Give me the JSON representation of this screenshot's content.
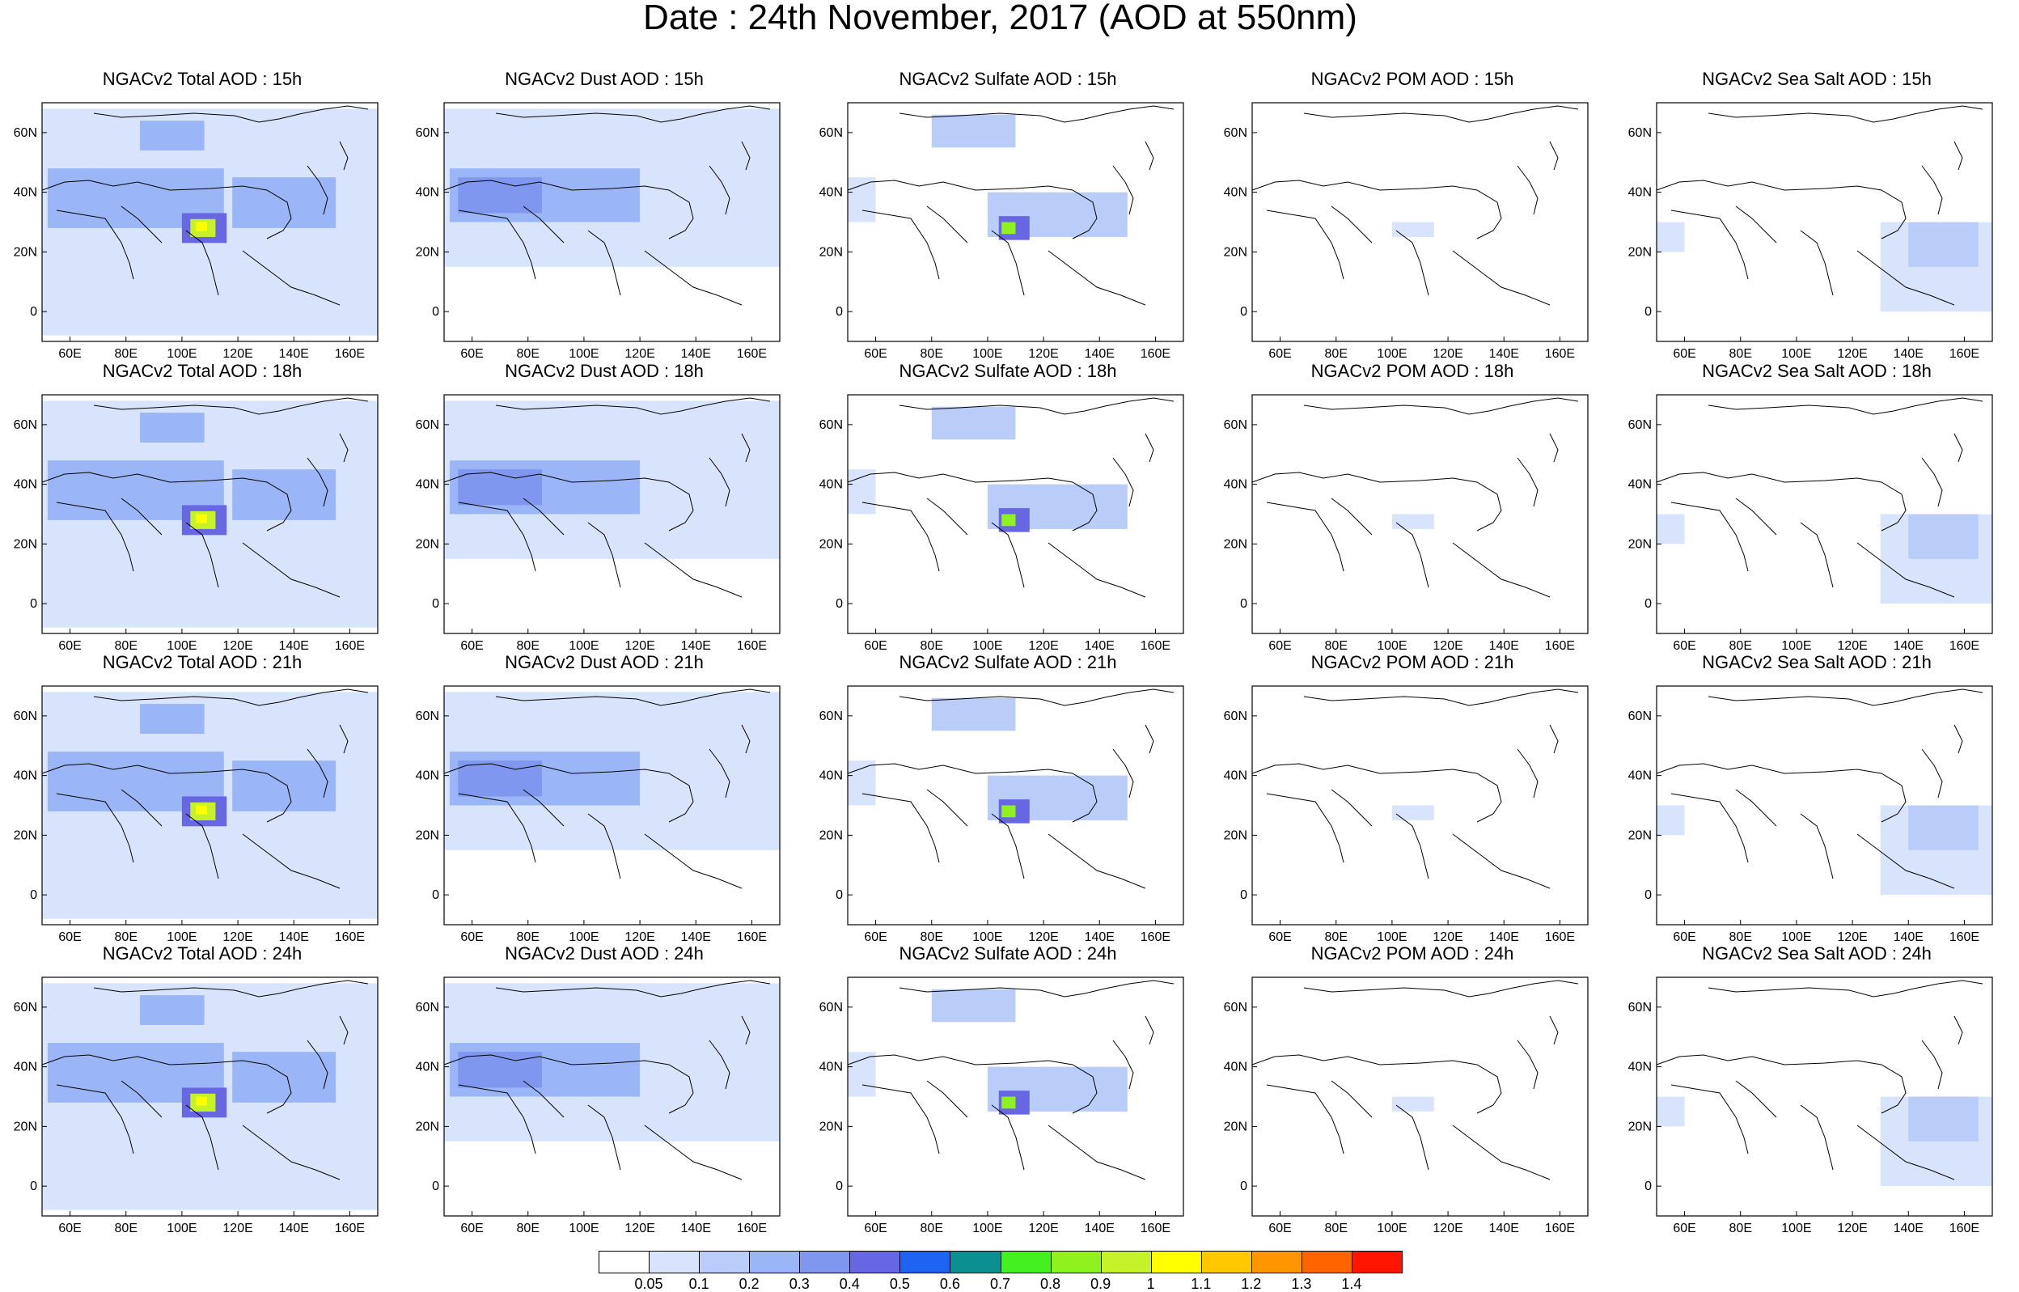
{
  "title": "Date : 24th November, 2017 (AOD at 550nm)",
  "lon_ticks": [
    "60E",
    "80E",
    "100E",
    "120E",
    "140E",
    "160E"
  ],
  "lat_ticks": [
    "60N",
    "40N",
    "20N",
    "0"
  ],
  "map_extent": {
    "lon": [
      50,
      170
    ],
    "lat": [
      -10,
      70
    ]
  },
  "rows": [
    "15h",
    "18h",
    "21h",
    "24h"
  ],
  "columns": [
    {
      "key": "total",
      "titles": [
        "NGACv2 Total AOD : 15h",
        "NGACv2 Total AOD : 18h",
        "NGACv2 Total AOD : 21h",
        "NGACv2 Total AOD : 24h"
      ]
    },
    {
      "key": "dust",
      "titles": [
        "NGACv2 Dust AOD : 15h",
        "NGACv2 Dust AOD : 18h",
        "NGACv2 Dust AOD : 21h",
        "NGACv2 Dust AOD : 24h"
      ]
    },
    {
      "key": "sulfate",
      "titles": [
        "NGACv2 Sulfate AOD : 15h",
        "NGACv2 Sulfate AOD : 18h",
        "NGACv2 Sulfate AOD : 21h",
        "NGACv2 Sulfate AOD : 24h"
      ]
    },
    {
      "key": "pom",
      "titles": [
        "NGACv2 POM AOD : 15h",
        "NGACv2 POM AOD : 18h",
        "NGACv2 POM AOD : 21h",
        "NGACv2 POM AOD : 24h"
      ]
    },
    {
      "key": "seasalt",
      "titles": [
        "NGACv2 Sea Salt AOD : 15h",
        "NGACv2 Sea Salt AOD : 18h",
        "NGACv2 Sea Salt AOD : 21h",
        "NGACv2 Sea Salt  AOD : 24h"
      ]
    }
  ],
  "colorbar": {
    "labels": [
      "0.05",
      "0.1",
      "0.2",
      "0.3",
      "0.4",
      "0.5",
      "0.6",
      "0.7",
      "0.8",
      "0.9",
      "1",
      "1.1",
      "1.2",
      "1.3",
      "1.4"
    ],
    "colors": [
      "#ffffff",
      "#d8e4fb",
      "#b9cdf8",
      "#9bb6f6",
      "#7f97ef",
      "#6767e3",
      "#1f63f2",
      "#0b8f91",
      "#44f020",
      "#8ff21f",
      "#c6f22a",
      "#ffff00",
      "#ffc800",
      "#ff9600",
      "#ff6400",
      "#ff1500"
    ]
  },
  "regions": {
    "total": [
      {
        "lon": [
          50,
          170
        ],
        "lat": [
          -8,
          68
        ],
        "v": 0.07
      },
      {
        "lon": [
          52,
          115
        ],
        "lat": [
          28,
          48
        ],
        "v": 0.25
      },
      {
        "lon": [
          85,
          108
        ],
        "lat": [
          54,
          64
        ],
        "v": 0.27
      },
      {
        "lon": [
          118,
          155
        ],
        "lat": [
          28,
          45
        ],
        "v": 0.25
      },
      {
        "lon": [
          100,
          116
        ],
        "lat": [
          23,
          33
        ],
        "v": 0.45
      },
      {
        "lon": [
          103,
          112
        ],
        "lat": [
          25,
          31
        ],
        "v": 0.9
      },
      {
        "lon": [
          105,
          109
        ],
        "lat": [
          27,
          30
        ],
        "v": 1.05
      }
    ],
    "dust": [
      {
        "lon": [
          50,
          170
        ],
        "lat": [
          15,
          68
        ],
        "v": 0.07
      },
      {
        "lon": [
          52,
          120
        ],
        "lat": [
          30,
          48
        ],
        "v": 0.2
      },
      {
        "lon": [
          55,
          85
        ],
        "lat": [
          33,
          45
        ],
        "v": 0.32
      }
    ],
    "sulfate": [
      {
        "lon": [
          80,
          110
        ],
        "lat": [
          55,
          66
        ],
        "v": 0.15
      },
      {
        "lon": [
          50,
          60
        ],
        "lat": [
          30,
          45
        ],
        "v": 0.08
      },
      {
        "lon": [
          100,
          150
        ],
        "lat": [
          25,
          40
        ],
        "v": 0.12
      },
      {
        "lon": [
          104,
          115
        ],
        "lat": [
          24,
          32
        ],
        "v": 0.45
      },
      {
        "lon": [
          105,
          110
        ],
        "lat": [
          26,
          30
        ],
        "v": 0.8
      }
    ],
    "pom": [
      {
        "lon": [
          100,
          115
        ],
        "lat": [
          25,
          30
        ],
        "v": 0.07
      }
    ],
    "seasalt": [
      {
        "lon": [
          130,
          170
        ],
        "lat": [
          0,
          30
        ],
        "v": 0.07
      },
      {
        "lon": [
          140,
          165
        ],
        "lat": [
          15,
          30
        ],
        "v": 0.12
      },
      {
        "lon": [
          50,
          60
        ],
        "lat": [
          20,
          30
        ],
        "v": 0.07
      }
    ]
  }
}
